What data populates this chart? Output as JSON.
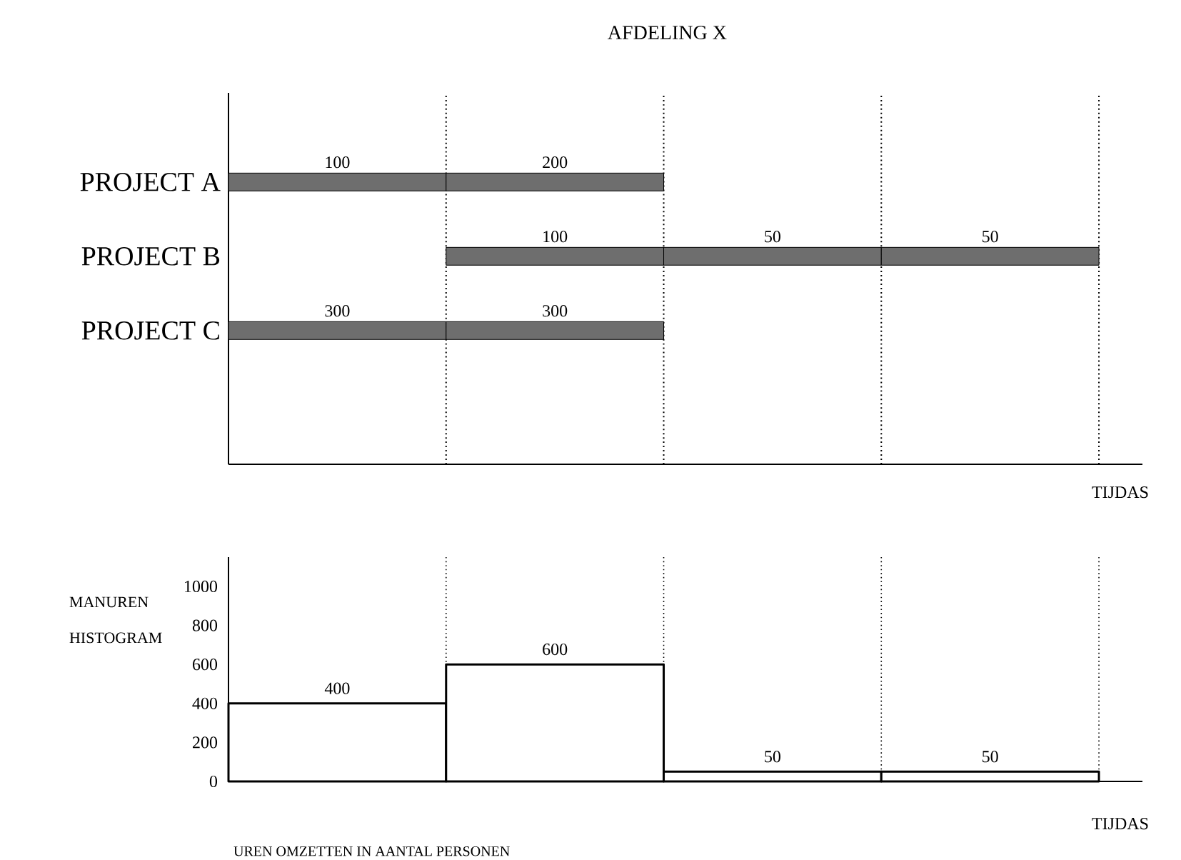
{
  "chart_data": [
    {
      "type": "other",
      "title": "AFDELING X",
      "xlabel": "TIJDAS",
      "categories": [
        "PROJECT  A",
        "PROJECT  B",
        "PROJECT  C"
      ],
      "data_labels": true,
      "series": [
        {
          "color": "#6e6e6e",
          "values": [
            100,
            null,
            300
          ]
        },
        {
          "color": "#6e6e6e",
          "values": [
            200,
            100,
            300
          ]
        },
        {
          "color": "#6e6e6e",
          "values": [
            null,
            50,
            null
          ]
        },
        {
          "color": "#6e6e6e",
          "values": [
            null,
            50,
            null
          ]
        }
      ]
    },
    {
      "type": "bar",
      "ylabel": "MANUREN HISTOGRAM",
      "xlabel": "TIJDAS",
      "categories": [
        null,
        null,
        null,
        null
      ],
      "values": [
        400,
        600,
        50,
        50
      ],
      "color": "#000000",
      "ylim": [
        0,
        1150
      ],
      "yticks": [
        0,
        200,
        400,
        600,
        800,
        1000
      ],
      "grid": "x",
      "data_labels": true,
      "annotations": [
        "UREN OMZETTEN IN AANTAL PERSONEN"
      ]
    }
  ]
}
